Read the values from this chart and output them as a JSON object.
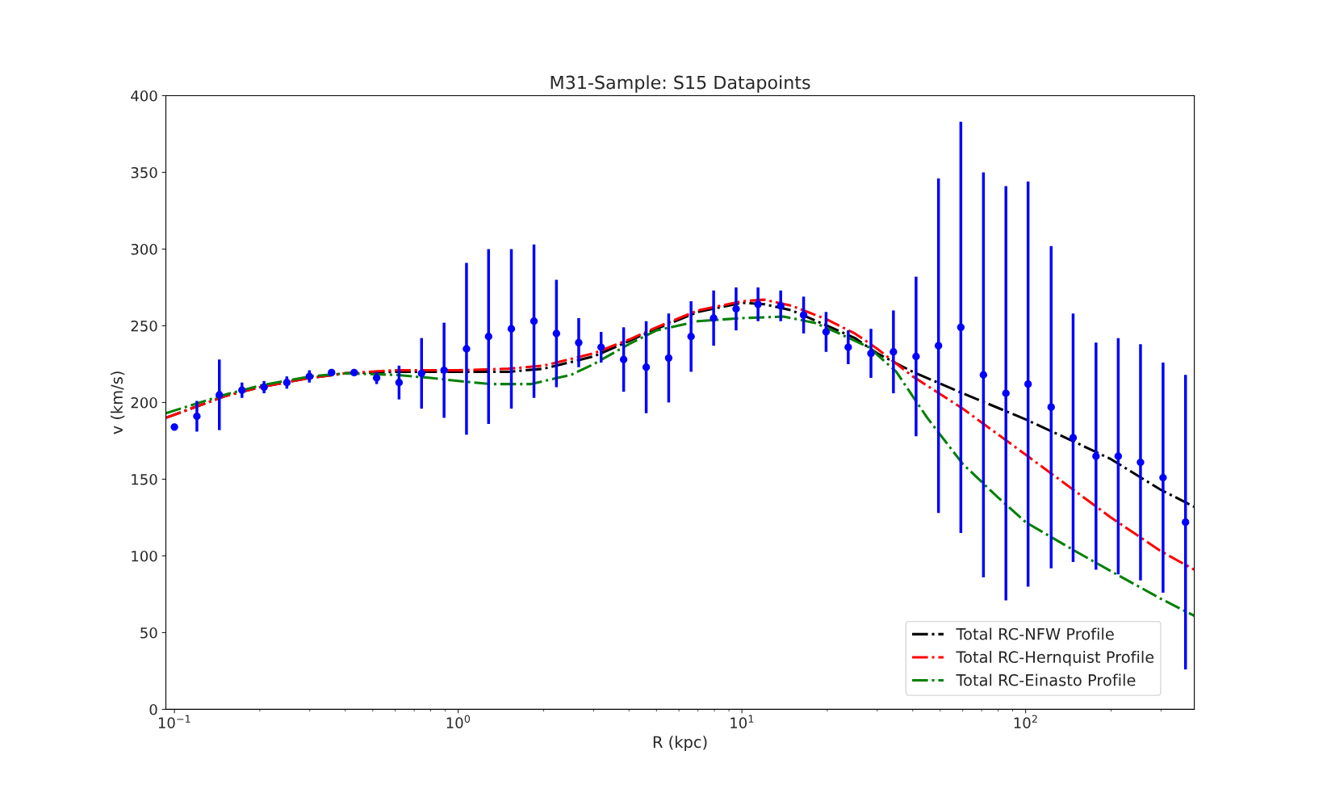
{
  "chart_data": {
    "type": "line",
    "title": "M31-Sample: S15 Datapoints",
    "xlabel": "R (kpc)",
    "ylabel": "v (km/s)",
    "log": "x",
    "xlim": [
      0.0933,
      393
    ],
    "ylim": [
      0,
      400
    ],
    "xticks": [
      {
        "value": 0.1,
        "label": "10$^{−1}$"
      },
      {
        "value": 1,
        "label": "10$^{0}$"
      },
      {
        "value": 10,
        "label": "10$^{1}$"
      },
      {
        "value": 100,
        "label": "10$^{2}$"
      }
    ],
    "yticks": [
      0,
      50,
      100,
      150,
      200,
      250,
      300,
      350,
      400
    ],
    "grid": false,
    "legend": "bottom right",
    "line_style": "dashdot",
    "series": [
      {
        "type": "scatter",
        "color": "#0000ff",
        "marker": "circle",
        "x": [
          0.1,
          0.12,
          0.144,
          0.173,
          0.207,
          0.249,
          0.299,
          0.358,
          0.43,
          0.516,
          0.619,
          0.743,
          0.892,
          1.07,
          1.28,
          1.54,
          1.85,
          2.22,
          2.66,
          3.19,
          3.83,
          4.6,
          5.52,
          6.62,
          7.95,
          9.54,
          11.4,
          13.7,
          16.5,
          19.8,
          23.7,
          28.5,
          34.2,
          41.1,
          49.3,
          59.1,
          71.0,
          85.2,
          102,
          123,
          147,
          177,
          212,
          254,
          305,
          366
        ],
        "values": [
          184,
          191,
          205,
          208,
          210,
          213,
          217,
          219.5,
          219.5,
          216,
          213,
          219,
          221,
          235,
          243,
          248,
          253,
          245,
          239,
          236,
          228,
          223,
          229,
          243,
          255,
          261,
          264,
          263,
          257,
          246,
          236,
          232,
          233,
          230,
          237,
          249,
          218,
          206,
          212,
          197,
          177,
          165,
          165,
          161,
          151,
          122
        ],
        "errors": [
          null,
          10,
          23,
          5,
          4,
          4,
          4,
          2,
          null,
          4,
          11,
          23,
          31,
          56,
          57,
          52,
          50,
          35,
          16,
          10,
          21,
          30,
          29,
          23,
          18,
          14,
          11,
          10,
          12,
          13,
          11,
          16,
          27,
          52,
          109,
          134,
          132,
          135,
          132,
          105,
          81,
          74,
          77,
          77,
          75,
          96
        ]
      },
      {
        "name": "Total RC-NFW Profile",
        "color": "#000000",
        "x": [
          0.0933,
          0.15,
          0.2,
          0.3,
          0.4,
          0.6,
          1,
          1.5,
          2,
          3,
          4,
          5,
          7,
          10,
          12,
          15,
          20,
          25,
          30,
          40,
          60,
          100,
          150,
          200,
          300,
          393
        ],
        "values": [
          190,
          204,
          210,
          216,
          219,
          220,
          220,
          220,
          222,
          230,
          240,
          248,
          259,
          265,
          264,
          260,
          250,
          242,
          232,
          220,
          206,
          189,
          174,
          163,
          143,
          132
        ]
      },
      {
        "name": "Total RC-Hernquist Profile",
        "color": "#ff0000",
        "x": [
          0.0933,
          0.15,
          0.2,
          0.3,
          0.4,
          0.6,
          1,
          1.5,
          2,
          3,
          4,
          5,
          7,
          10,
          12,
          15,
          20,
          25,
          30,
          40,
          60,
          100,
          150,
          200,
          300,
          393
        ],
        "values": [
          190,
          204,
          210,
          216,
          219,
          221,
          221,
          222,
          224,
          232,
          241,
          249,
          260,
          266,
          267,
          263,
          254,
          245,
          235,
          217,
          196,
          166,
          142,
          125,
          103,
          91
        ]
      },
      {
        "name": "Total RC-Einasto Profile",
        "color": "#008000",
        "x": [
          0.0933,
          0.15,
          0.2,
          0.3,
          0.4,
          0.6,
          0.8,
          1,
          1.3,
          1.8,
          2.5,
          3,
          4,
          5,
          7,
          10,
          14,
          18,
          22,
          28,
          35,
          45,
          60,
          80,
          100,
          150,
          200,
          300,
          393
        ],
        "values": [
          193,
          205,
          211,
          217,
          219,
          218,
          216,
          214,
          212,
          212,
          218,
          225,
          238,
          247,
          253,
          255,
          256,
          252,
          245,
          236,
          220,
          190,
          160,
          138,
          122,
          103,
          90,
          72,
          61
        ]
      }
    ]
  }
}
